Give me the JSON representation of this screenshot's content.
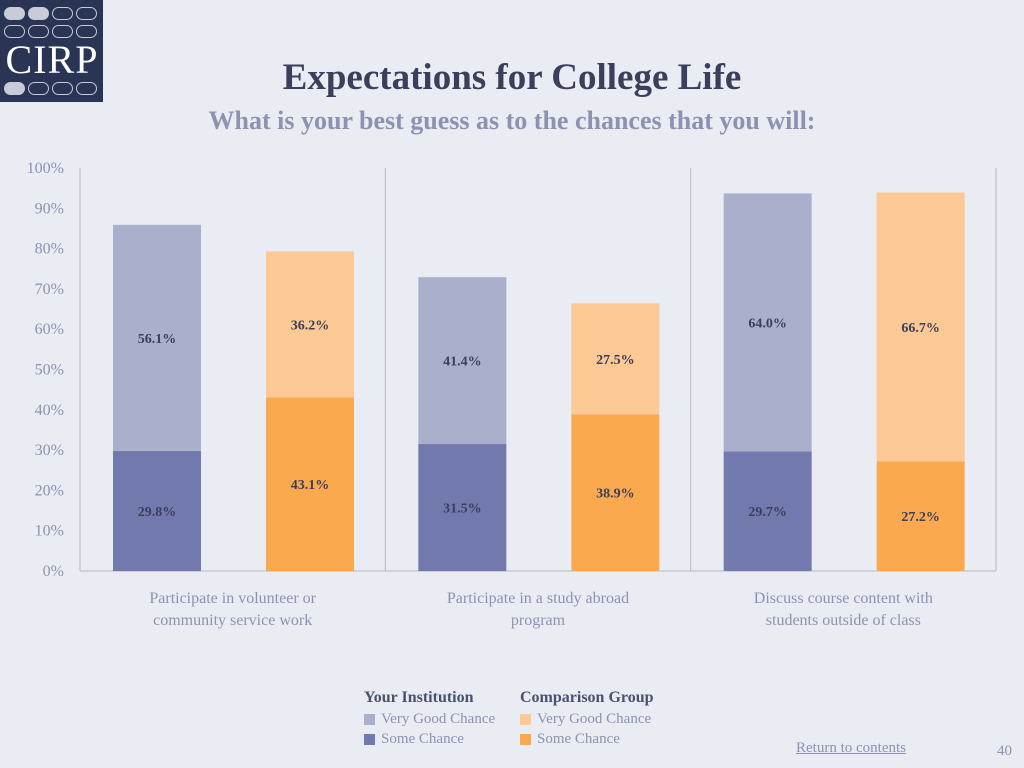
{
  "logo": {
    "text": "CIRP"
  },
  "header": {
    "title": "Expectations for College Life",
    "subtitle": "What is your best guess as to the chances that you will:"
  },
  "chart_data": {
    "type": "bar",
    "stacked": true,
    "categories": [
      [
        "Participate in volunteer or",
        "community service work"
      ],
      [
        "Participate in a study abroad",
        "program"
      ],
      [
        "Discuss course content with",
        "students outside of class"
      ]
    ],
    "groups": [
      {
        "name": "Your Institution",
        "series": [
          {
            "name": "Some Chance",
            "values": [
              29.8,
              31.5,
              29.7
            ],
            "color": "#7279ad"
          },
          {
            "name": "Very Good Chance",
            "values": [
              56.1,
              41.4,
              64.0
            ],
            "color": "#aab0cc"
          }
        ]
      },
      {
        "name": "Comparison Group",
        "series": [
          {
            "name": "Some Chance",
            "values": [
              43.1,
              38.9,
              27.2
            ],
            "color": "#fba94f"
          },
          {
            "name": "Very Good Chance",
            "values": [
              36.2,
              27.5,
              66.7
            ],
            "color": "#fcc893"
          }
        ]
      }
    ],
    "yticks": [
      "0%",
      "10%",
      "20%",
      "30%",
      "40%",
      "50%",
      "60%",
      "70%",
      "80%",
      "90%",
      "100%"
    ],
    "ylim": [
      0,
      100
    ],
    "value_suffix": "%"
  },
  "legend": {
    "institution": {
      "title": "Your Institution",
      "very_good": "Very Good Chance",
      "some": "Some Chance"
    },
    "comparison": {
      "title": "Comparison Group",
      "very_good": "Very Good Chance",
      "some": "Some Chance"
    }
  },
  "colors": {
    "inst_very_good": "#aab0cc",
    "inst_some": "#7279ad",
    "comp_very_good": "#fcc893",
    "comp_some": "#fba94f"
  },
  "footer": {
    "return_link": "Return to contents",
    "page_number": "40"
  }
}
